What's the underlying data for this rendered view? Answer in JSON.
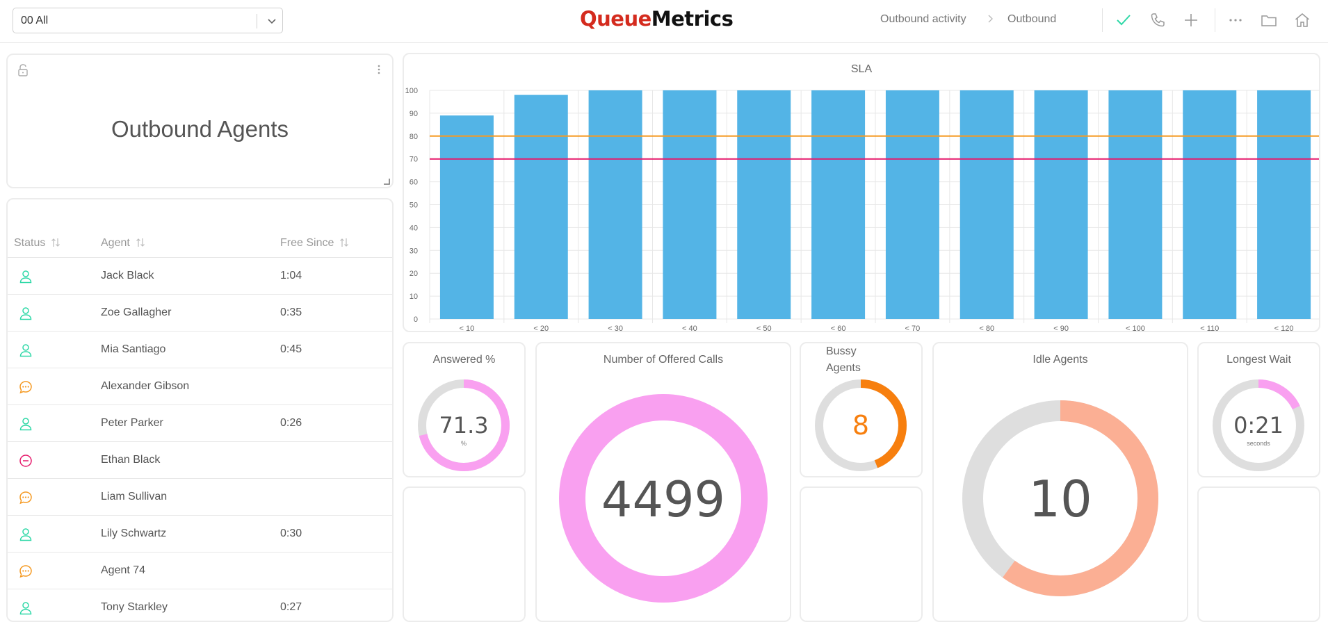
{
  "topbar": {
    "queue_select_value": "00 All",
    "logo_part1": "Queue",
    "logo_part2": "Metrics",
    "breadcrumb_1": "Outbound activity",
    "breadcrumb_2": "Outbound"
  },
  "title_card": {
    "title": "Outbound Agents"
  },
  "agents_table": {
    "headers": [
      "Status",
      "Agent",
      "Free Since"
    ],
    "rows": [
      {
        "status": "free",
        "agent": "Jack Black",
        "free_since": "1:04"
      },
      {
        "status": "free",
        "agent": "Zoe Gallagher",
        "free_since": "0:35"
      },
      {
        "status": "free",
        "agent": "Mia Santiago",
        "free_since": "0:45"
      },
      {
        "status": "on-call",
        "agent": "Alexander Gibson",
        "free_since": ""
      },
      {
        "status": "free",
        "agent": "Peter Parker",
        "free_since": "0:26"
      },
      {
        "status": "paused",
        "agent": "Ethan Black",
        "free_since": ""
      },
      {
        "status": "on-call",
        "agent": "Liam Sullivan",
        "free_since": ""
      },
      {
        "status": "free",
        "agent": "Lily Schwartz",
        "free_since": "0:30"
      },
      {
        "status": "on-call",
        "agent": "Agent 74",
        "free_since": ""
      },
      {
        "status": "free",
        "agent": "Tony Starkley",
        "free_since": "0:27"
      }
    ]
  },
  "chart_data": {
    "type": "bar",
    "title": "SLA",
    "categories": [
      "< 10",
      "< 20",
      "< 30",
      "< 40",
      "< 50",
      "< 60",
      "< 70",
      "< 80",
      "< 90",
      "< 100",
      "< 110",
      "< 120"
    ],
    "values": [
      89,
      98,
      100,
      100,
      100,
      100,
      100,
      100,
      100,
      100,
      100,
      100
    ],
    "ylim": [
      0,
      100
    ],
    "yticks": [
      0,
      10,
      20,
      30,
      40,
      50,
      60,
      70,
      80,
      90,
      100
    ],
    "reference_lines": [
      {
        "value": 80,
        "color": "#f59a23"
      },
      {
        "value": 70,
        "color": "#e6196b"
      }
    ],
    "bar_color": "#53b4e6",
    "grid": true
  },
  "gauges": {
    "answered": {
      "title": "Answered %",
      "value": "71.3",
      "unit": "%",
      "fraction": 0.713,
      "color": "#f9a0f0"
    },
    "offered": {
      "title": "Number of Offered Calls",
      "value": "4499",
      "fraction": 1.0,
      "color": "#f9a0f0"
    },
    "busy": {
      "title_line1": "Bussy",
      "title_line2": "Agents",
      "value": "8",
      "fraction": 0.44,
      "color": "#f77f0e"
    },
    "idle": {
      "title": "Idle Agents",
      "value": "10",
      "fraction": 0.6,
      "color": "#fbaf94"
    },
    "longest": {
      "title": "Longest Wait",
      "value": "0:21",
      "unit": "seconds",
      "fraction": 0.18,
      "color": "#f9a0f0"
    }
  },
  "colors": {
    "free": "#2ed8a7",
    "on_call": "#f59a23",
    "paused": "#e6196b",
    "check": "#2ed8a7",
    "track": "#dedede"
  }
}
